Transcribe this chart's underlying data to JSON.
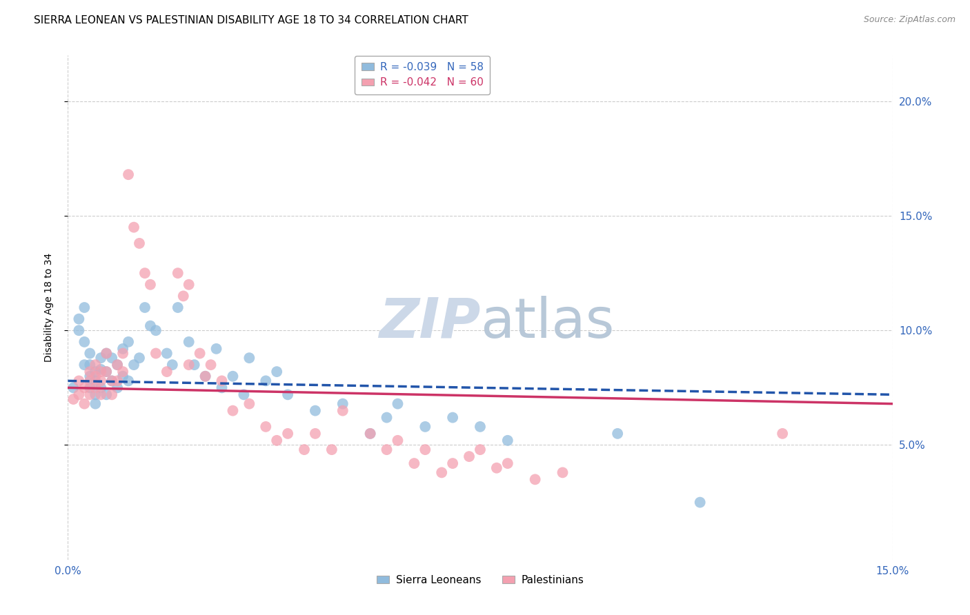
{
  "title": "SIERRA LEONEAN VS PALESTINIAN DISABILITY AGE 18 TO 34 CORRELATION CHART",
  "source": "Source: ZipAtlas.com",
  "ylabel": "Disability Age 18 to 34",
  "xlim": [
    0.0,
    0.15
  ],
  "ylim": [
    0.0,
    0.22
  ],
  "yticks_right": [
    0.05,
    0.1,
    0.15,
    0.2
  ],
  "ytick_labels_right": [
    "5.0%",
    "10.0%",
    "15.0%",
    "20.0%"
  ],
  "xticks": [
    0.0,
    0.15
  ],
  "xtick_labels": [
    "0.0%",
    "15.0%"
  ],
  "blue_color": "#90bbdd",
  "pink_color": "#f4a0b0",
  "trend_blue_color": "#2255aa",
  "trend_pink_color": "#cc3366",
  "grid_color": "#cccccc",
  "bg_color": "#ffffff",
  "title_fontsize": 11,
  "axis_label_fontsize": 10,
  "tick_fontsize": 11,
  "source_fontsize": 9,
  "watermark_color": "#ccd8e8",
  "sierra_R": -0.039,
  "sierra_N": 58,
  "palest_R": -0.042,
  "palest_N": 60,
  "sierra_x": [
    0.001,
    0.002,
    0.002,
    0.003,
    0.003,
    0.003,
    0.004,
    0.004,
    0.004,
    0.004,
    0.005,
    0.005,
    0.005,
    0.005,
    0.006,
    0.006,
    0.006,
    0.007,
    0.007,
    0.007,
    0.008,
    0.008,
    0.009,
    0.009,
    0.01,
    0.01,
    0.011,
    0.011,
    0.012,
    0.013,
    0.014,
    0.015,
    0.016,
    0.018,
    0.019,
    0.02,
    0.022,
    0.023,
    0.025,
    0.027,
    0.028,
    0.03,
    0.032,
    0.033,
    0.036,
    0.038,
    0.04,
    0.045,
    0.05,
    0.055,
    0.058,
    0.06,
    0.065,
    0.07,
    0.075,
    0.08,
    0.1,
    0.115
  ],
  "sierra_y": [
    0.075,
    0.105,
    0.1,
    0.11,
    0.095,
    0.085,
    0.09,
    0.085,
    0.08,
    0.075,
    0.082,
    0.078,
    0.072,
    0.068,
    0.088,
    0.083,
    0.075,
    0.09,
    0.082,
    0.072,
    0.088,
    0.078,
    0.085,
    0.075,
    0.092,
    0.08,
    0.095,
    0.078,
    0.085,
    0.088,
    0.11,
    0.102,
    0.1,
    0.09,
    0.085,
    0.11,
    0.095,
    0.085,
    0.08,
    0.092,
    0.075,
    0.08,
    0.072,
    0.088,
    0.078,
    0.082,
    0.072,
    0.065,
    0.068,
    0.055,
    0.062,
    0.068,
    0.058,
    0.062,
    0.058,
    0.052,
    0.055,
    0.025
  ],
  "palest_x": [
    0.001,
    0.002,
    0.002,
    0.003,
    0.003,
    0.004,
    0.004,
    0.004,
    0.005,
    0.005,
    0.005,
    0.006,
    0.006,
    0.006,
    0.007,
    0.007,
    0.008,
    0.008,
    0.009,
    0.009,
    0.01,
    0.01,
    0.011,
    0.012,
    0.013,
    0.014,
    0.015,
    0.016,
    0.018,
    0.02,
    0.021,
    0.022,
    0.022,
    0.024,
    0.025,
    0.026,
    0.028,
    0.03,
    0.033,
    0.036,
    0.038,
    0.04,
    0.043,
    0.045,
    0.048,
    0.05,
    0.055,
    0.058,
    0.06,
    0.063,
    0.065,
    0.068,
    0.07,
    0.073,
    0.075,
    0.078,
    0.08,
    0.085,
    0.09,
    0.13
  ],
  "palest_y": [
    0.07,
    0.072,
    0.078,
    0.068,
    0.075,
    0.082,
    0.078,
    0.072,
    0.085,
    0.08,
    0.075,
    0.082,
    0.078,
    0.072,
    0.09,
    0.082,
    0.078,
    0.072,
    0.085,
    0.078,
    0.09,
    0.082,
    0.168,
    0.145,
    0.138,
    0.125,
    0.12,
    0.09,
    0.082,
    0.125,
    0.115,
    0.12,
    0.085,
    0.09,
    0.08,
    0.085,
    0.078,
    0.065,
    0.068,
    0.058,
    0.052,
    0.055,
    0.048,
    0.055,
    0.048,
    0.065,
    0.055,
    0.048,
    0.052,
    0.042,
    0.048,
    0.038,
    0.042,
    0.045,
    0.048,
    0.04,
    0.042,
    0.035,
    0.038,
    0.055
  ]
}
